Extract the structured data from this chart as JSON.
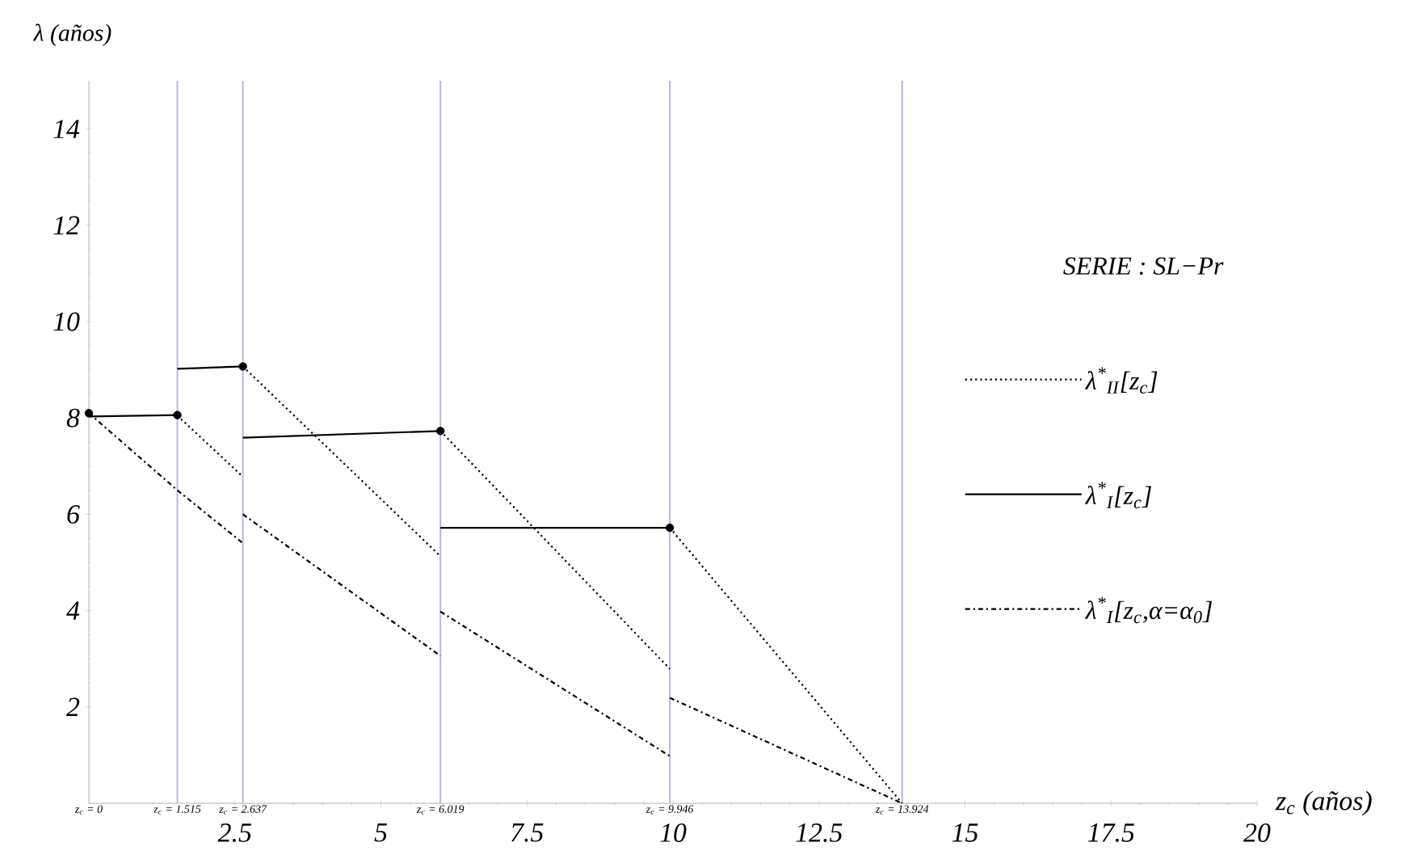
{
  "chart_data": {
    "type": "line",
    "xlabel": "z$_{c}$ (años)",
    "ylabel": "λ (años)",
    "legend_title": "SERIE :  SL−Pr",
    "xlim": [
      0,
      20
    ],
    "ylim": [
      0,
      15
    ],
    "xticks": [
      2.5,
      5,
      7.5,
      10,
      12.5,
      15,
      17.5,
      20
    ],
    "yticks": [
      2,
      4,
      6,
      8,
      10,
      12,
      14
    ],
    "grid": false,
    "legend": "right",
    "series": [
      {
        "name": "λ$^{*}$$_{II}$[z$_{c}$]",
        "line_style": "dotted",
        "color": "#000000",
        "x": [
          1.515,
          2.637
        ],
        "values": [
          8.05,
          6.78
        ]
      },
      {
        "line_style": "dotted",
        "color": "#000000",
        "x": [
          2.637,
          6.019
        ],
        "values": [
          9.07,
          5.13
        ]
      },
      {
        "line_style": "dotted",
        "color": "#000000",
        "x": [
          6.019,
          9.946
        ],
        "values": [
          7.73,
          2.79
        ]
      },
      {
        "line_style": "dotted",
        "color": "#000000",
        "x": [
          9.946,
          13.924
        ],
        "values": [
          5.72,
          0
        ]
      },
      {
        "name": "λ$^{*}$$_{I}$[z$_{c}$]",
        "line_style": "solid",
        "color": "#000000",
        "x": [
          0,
          1.515
        ],
        "values": [
          8.03,
          8.06
        ]
      },
      {
        "line_style": "solid",
        "color": "#000000",
        "x": [
          1.515,
          2.637
        ],
        "values": [
          9.02,
          9.07
        ]
      },
      {
        "line_style": "solid",
        "color": "#000000",
        "x": [
          2.637,
          6.019
        ],
        "values": [
          7.59,
          7.73
        ]
      },
      {
        "line_style": "solid",
        "color": "#000000",
        "x": [
          6.019,
          9.946
        ],
        "values": [
          5.72,
          5.72
        ]
      },
      {
        "name": "λ$^{*}$$_{I}$[z$_{c}$,α=α$_{0}$]",
        "line_style": "dashdot",
        "color": "#000000",
        "x": [
          0,
          1.515,
          2.637
        ],
        "values": [
          8.1,
          6.5,
          5.4
        ]
      },
      {
        "line_style": "dashdot",
        "color": "#000000",
        "x": [
          2.637,
          6.019
        ],
        "values": [
          6.0,
          3.06
        ]
      },
      {
        "line_style": "dashdot",
        "color": "#000000",
        "x": [
          6.019,
          9.946
        ],
        "values": [
          3.98,
          0.98
        ]
      },
      {
        "line_style": "dashdot",
        "color": "#000000",
        "x": [
          9.946,
          13.924
        ],
        "values": [
          2.19,
          0
        ]
      },
      {
        "type": "scatter",
        "marker": "circle",
        "color": "#000000",
        "x": [
          0,
          1.515,
          2.637,
          6.019,
          9.946
        ],
        "values": [
          8.1,
          8.06,
          9.07,
          7.73,
          5.72
        ]
      }
    ],
    "ref_lines": [
      {
        "axis": "x",
        "value": 1.515,
        "label": "z$_{c}$ = 1.515",
        "color": "#b4b8e6"
      },
      {
        "axis": "x",
        "value": 2.637,
        "label": "z$_{c}$ = 2.637",
        "color": "#b4b8e6"
      },
      {
        "axis": "x",
        "value": 6.019,
        "label": "z$_{c}$ = 6.019",
        "color": "#b4b8e6"
      },
      {
        "axis": "x",
        "value": 9.946,
        "label": "z$_{c}$ = 9.946",
        "color": "#b4b8e6"
      },
      {
        "axis": "x",
        "value": 13.924,
        "label": "z$_{c}$ = 13.924",
        "color": "#b4b8e6"
      }
    ],
    "annotations": [
      "z$_{c}$ = 0"
    ]
  }
}
